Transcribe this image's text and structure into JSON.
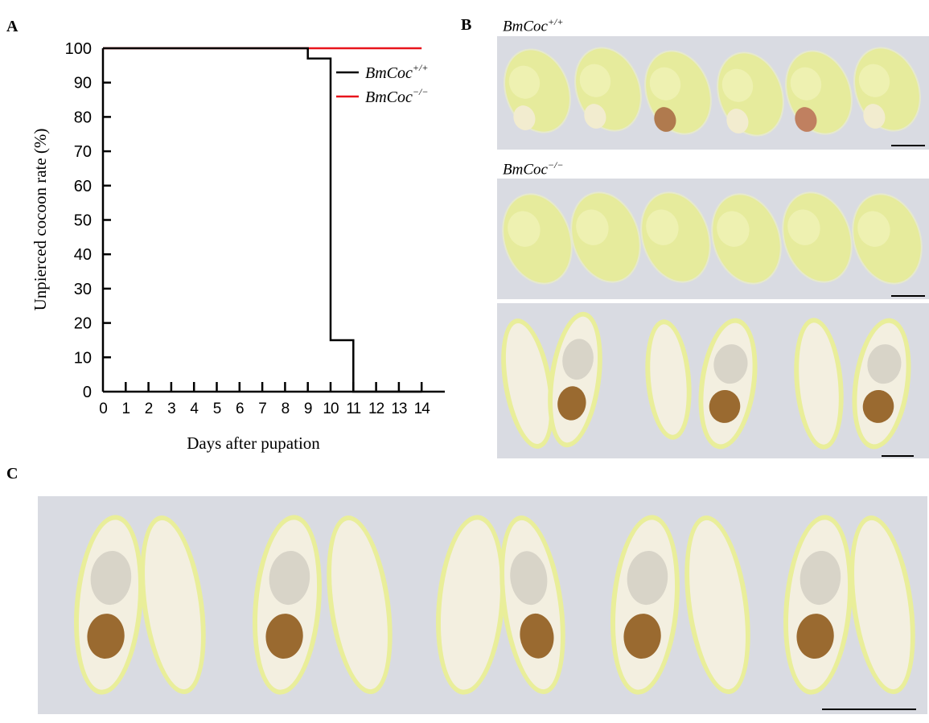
{
  "panels": {
    "a": "A",
    "b": "B",
    "c": "C"
  },
  "panel_b": {
    "wildtype_label": {
      "base": "BmCoc",
      "sup": "+/+"
    },
    "mutant_label": {
      "base": "BmCoc",
      "sup": "−/−"
    }
  },
  "colors": {
    "wildtype": "#000000",
    "mutant": "#e8141c",
    "cocoon": "#e6eb9c",
    "shell_inner": "#f3efe0",
    "background": "#d9dbe2"
  },
  "chart_data": {
    "type": "line",
    "step": true,
    "xlabel": "Days after pupation",
    "ylabel": "Unpierced cocoon rate (%)",
    "xlim": [
      0,
      15
    ],
    "ylim": [
      0,
      100
    ],
    "xticks": [
      0,
      1,
      2,
      3,
      4,
      5,
      6,
      7,
      8,
      9,
      10,
      11,
      12,
      13,
      14
    ],
    "yticks": [
      0,
      10,
      20,
      30,
      40,
      50,
      60,
      70,
      80,
      90,
      100
    ],
    "legend_position": "top-right",
    "series": [
      {
        "name": "BmCoc+/+",
        "name_base": "BmCoc",
        "name_sup": "+/+",
        "color": "#000000",
        "x": [
          0,
          9,
          10,
          11,
          14
        ],
        "y": [
          100,
          97,
          15,
          0,
          0
        ]
      },
      {
        "name": "BmCoc−/−",
        "name_base": "BmCoc",
        "name_sup": "−/−",
        "color": "#e8141c",
        "x": [
          0,
          14
        ],
        "y": [
          100,
          100
        ]
      }
    ]
  }
}
